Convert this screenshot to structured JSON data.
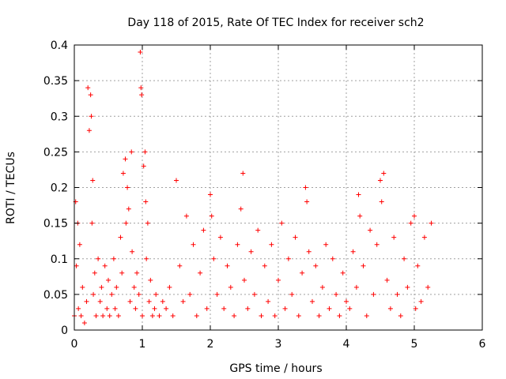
{
  "chart_data": {
    "type": "scatter",
    "title": "Day 118 of 2015, Rate Of TEC Index for receiver sch2",
    "xlabel": "GPS time / hours",
    "ylabel": "ROTI / TECUs",
    "xlim": [
      0,
      6
    ],
    "ylim": [
      0,
      0.4
    ],
    "x_ticks": [
      "0",
      "1",
      "2",
      "3",
      "4",
      "5",
      "6"
    ],
    "y_ticks": [
      "0",
      "0.05",
      "0.1",
      "0.15",
      "0.2",
      "0.25",
      "0.3",
      "0.35",
      "0.4"
    ],
    "grid": true,
    "marker": "+",
    "color": "#ff0000",
    "series": [
      {
        "x": [
          0.0,
          0.02,
          0.03,
          0.05,
          0.06,
          0.08,
          0.1,
          0.12,
          0.15,
          0.18,
          0.2,
          0.22,
          0.24,
          0.25,
          0.26,
          0.27,
          0.28,
          0.3,
          0.32,
          0.35,
          0.38,
          0.4,
          0.42,
          0.45,
          0.48,
          0.5,
          0.52,
          0.55,
          0.58,
          0.6,
          0.62,
          0.65,
          0.68,
          0.7,
          0.72,
          0.75,
          0.76,
          0.78,
          0.8,
          0.82,
          0.84,
          0.85,
          0.88,
          0.9,
          0.92,
          0.95,
          0.97,
          0.98,
          0.99,
          1.0,
          1.02,
          1.04,
          1.05,
          1.06,
          1.08,
          1.1,
          1.12,
          1.15,
          1.18,
          1.2,
          1.25,
          1.3,
          1.35,
          1.4,
          1.45,
          1.5,
          1.55,
          1.6,
          1.65,
          1.7,
          1.75,
          1.8,
          1.85,
          1.9,
          1.95,
          2.0,
          2.02,
          2.05,
          2.1,
          2.15,
          2.2,
          2.25,
          2.3,
          2.35,
          2.4,
          2.45,
          2.48,
          2.5,
          2.55,
          2.6,
          2.65,
          2.7,
          2.75,
          2.8,
          2.85,
          2.9,
          2.95,
          3.0,
          3.05,
          3.1,
          3.15,
          3.2,
          3.25,
          3.3,
          3.35,
          3.4,
          3.42,
          3.45,
          3.5,
          3.55,
          3.6,
          3.65,
          3.7,
          3.75,
          3.8,
          3.85,
          3.9,
          3.95,
          4.0,
          4.05,
          4.1,
          4.15,
          4.18,
          4.2,
          4.25,
          4.3,
          4.35,
          4.4,
          4.45,
          4.5,
          4.52,
          4.55,
          4.6,
          4.65,
          4.7,
          4.75,
          4.8,
          4.85,
          4.9,
          4.95,
          5.0,
          5.02,
          5.05,
          5.1,
          5.15,
          5.2,
          5.25
        ],
        "y": [
          0.02,
          0.18,
          0.09,
          0.15,
          0.03,
          0.12,
          0.02,
          0.06,
          0.01,
          0.04,
          0.34,
          0.28,
          0.33,
          0.3,
          0.15,
          0.21,
          0.05,
          0.08,
          0.02,
          0.1,
          0.04,
          0.06,
          0.02,
          0.09,
          0.03,
          0.07,
          0.02,
          0.05,
          0.1,
          0.03,
          0.06,
          0.02,
          0.13,
          0.08,
          0.22,
          0.24,
          0.15,
          0.2,
          0.17,
          0.04,
          0.25,
          0.11,
          0.06,
          0.03,
          0.08,
          0.05,
          0.39,
          0.34,
          0.33,
          0.02,
          0.23,
          0.25,
          0.18,
          0.1,
          0.15,
          0.04,
          0.07,
          0.02,
          0.03,
          0.05,
          0.02,
          0.04,
          0.03,
          0.06,
          0.02,
          0.21,
          0.09,
          0.04,
          0.16,
          0.05,
          0.12,
          0.02,
          0.08,
          0.14,
          0.03,
          0.19,
          0.16,
          0.1,
          0.05,
          0.13,
          0.03,
          0.09,
          0.06,
          0.02,
          0.12,
          0.17,
          0.22,
          0.07,
          0.03,
          0.11,
          0.05,
          0.14,
          0.02,
          0.09,
          0.04,
          0.12,
          0.02,
          0.07,
          0.15,
          0.03,
          0.1,
          0.05,
          0.13,
          0.02,
          0.08,
          0.2,
          0.18,
          0.11,
          0.04,
          0.09,
          0.02,
          0.06,
          0.12,
          0.03,
          0.1,
          0.05,
          0.02,
          0.08,
          0.04,
          0.03,
          0.11,
          0.06,
          0.19,
          0.16,
          0.09,
          0.02,
          0.14,
          0.05,
          0.12,
          0.21,
          0.18,
          0.22,
          0.07,
          0.03,
          0.13,
          0.05,
          0.02,
          0.1,
          0.06,
          0.15,
          0.16,
          0.03,
          0.09,
          0.04,
          0.13,
          0.06,
          0.15
        ]
      }
    ]
  }
}
